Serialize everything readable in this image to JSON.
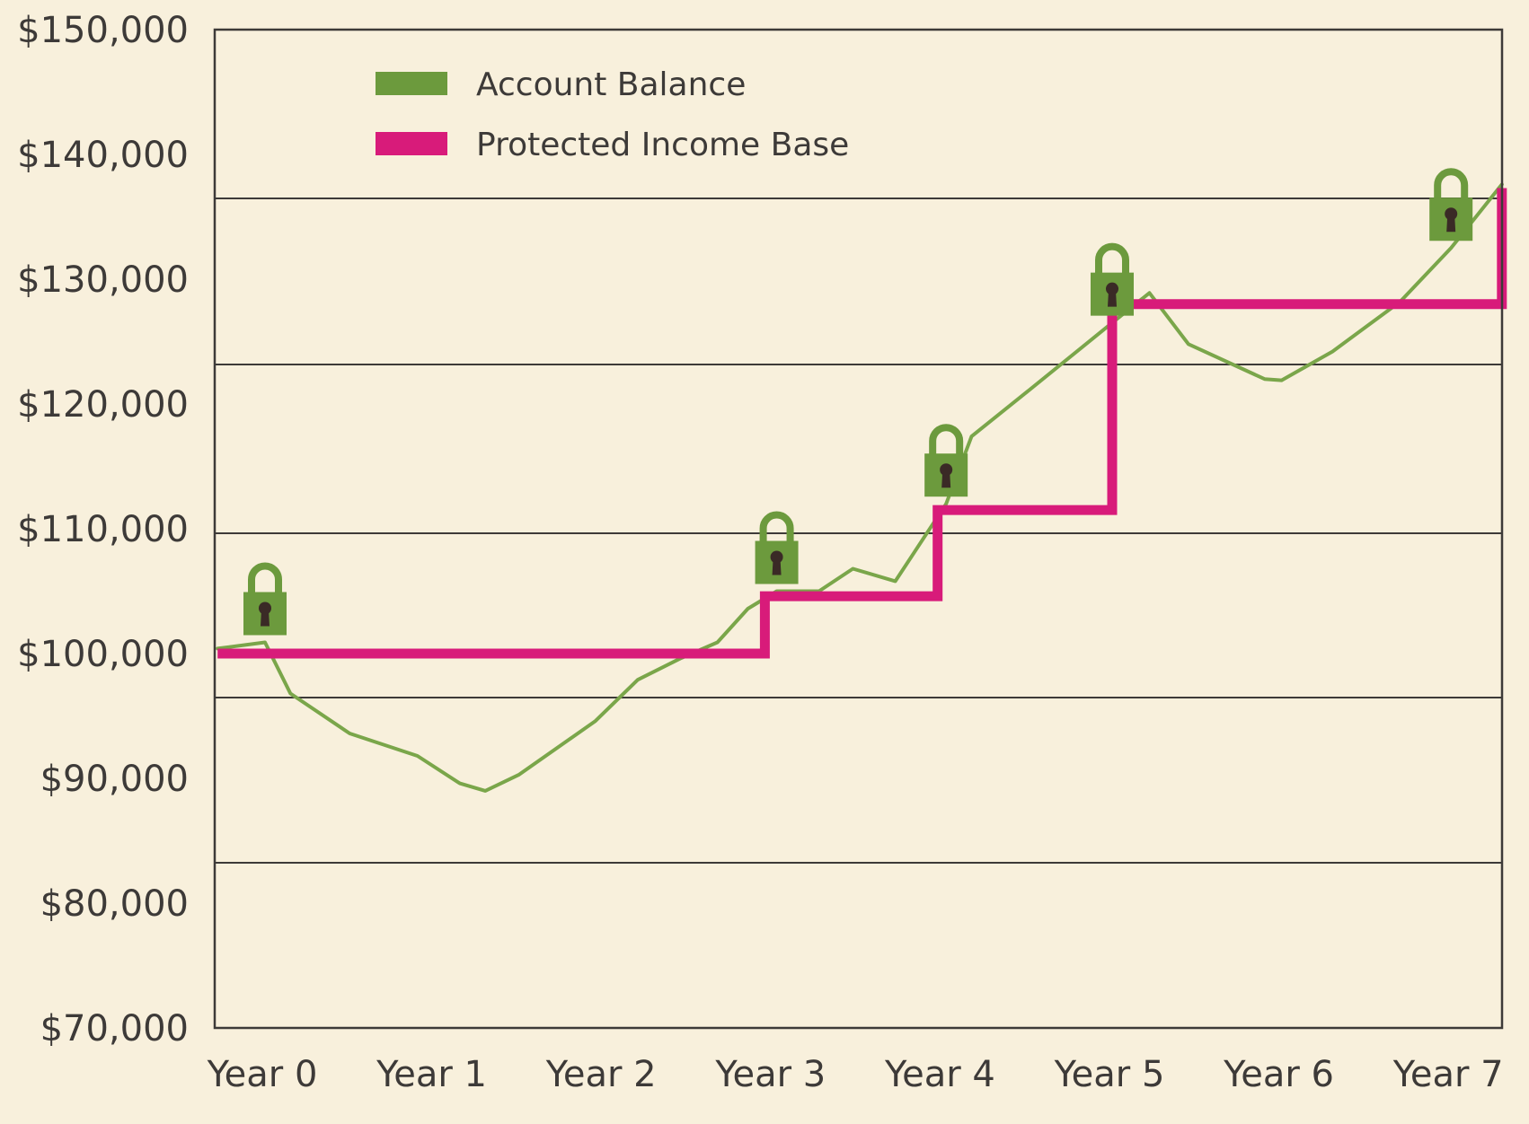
{
  "chart_data": {
    "type": "line",
    "x_categories": [
      "Year 0",
      "Year 1",
      "Year 2",
      "Year 3",
      "Year 4",
      "Year 5",
      "Year 6",
      "Year 7"
    ],
    "y_ticks": [
      "$150,000",
      "$140,000",
      "$130,000",
      "$120,000",
      "$110,000",
      "$100,000",
      "$90,000",
      "$80,000",
      "$70,000"
    ],
    "ylim": [
      70000,
      150000
    ],
    "xlim": [
      0,
      7.3
    ],
    "legend": {
      "position": "top-left"
    },
    "series": [
      {
        "name": "Account Balance",
        "color": "#7aa64a",
        "points": [
          [
            -0.28,
            100400
          ],
          [
            0.0,
            100900
          ],
          [
            0.15,
            96800
          ],
          [
            0.5,
            93600
          ],
          [
            0.9,
            91800
          ],
          [
            1.15,
            89600
          ],
          [
            1.3,
            89000
          ],
          [
            1.5,
            90300
          ],
          [
            1.95,
            94600
          ],
          [
            2.2,
            97900
          ],
          [
            2.45,
            99600
          ],
          [
            2.67,
            100900
          ],
          [
            2.85,
            103600
          ],
          [
            3.02,
            105000
          ],
          [
            3.27,
            105000
          ],
          [
            3.47,
            106800
          ],
          [
            3.72,
            105800
          ],
          [
            4.02,
            112000
          ],
          [
            4.17,
            117400
          ],
          [
            4.5,
            121000
          ],
          [
            5.0,
            126500
          ],
          [
            5.22,
            128900
          ],
          [
            5.45,
            124800
          ],
          [
            5.9,
            122000
          ],
          [
            6.0,
            121900
          ],
          [
            6.3,
            124200
          ],
          [
            6.7,
            128200
          ],
          [
            7.0,
            132500
          ],
          [
            7.3,
            137600
          ]
        ]
      },
      {
        "name": "Protected Income Base",
        "color": "#d81b7a",
        "step_points": [
          [
            -0.28,
            100000
          ],
          [
            2.95,
            100000
          ],
          [
            2.95,
            104600
          ],
          [
            3.97,
            104600
          ],
          [
            3.97,
            111500
          ],
          [
            5.0,
            111500
          ],
          [
            5.0,
            128000
          ],
          [
            7.3,
            128000
          ],
          [
            7.3,
            137300
          ]
        ]
      }
    ],
    "lock_markers": [
      {
        "icon": "padlock-icon",
        "x": 0.0,
        "y": 100900
      },
      {
        "icon": "padlock-icon",
        "x": 3.02,
        "y": 105000
      },
      {
        "icon": "padlock-icon",
        "x": 4.02,
        "y": 112000
      },
      {
        "icon": "padlock-icon",
        "x": 5.0,
        "y": 126500
      },
      {
        "icon": "padlock-icon",
        "x": 7.0,
        "y": 132500
      }
    ],
    "colors": {
      "background": "#f8f0dc",
      "frame": "#3d3a38",
      "lock_body": "#6c9a3d",
      "keyhole": "#3a2a26"
    }
  }
}
